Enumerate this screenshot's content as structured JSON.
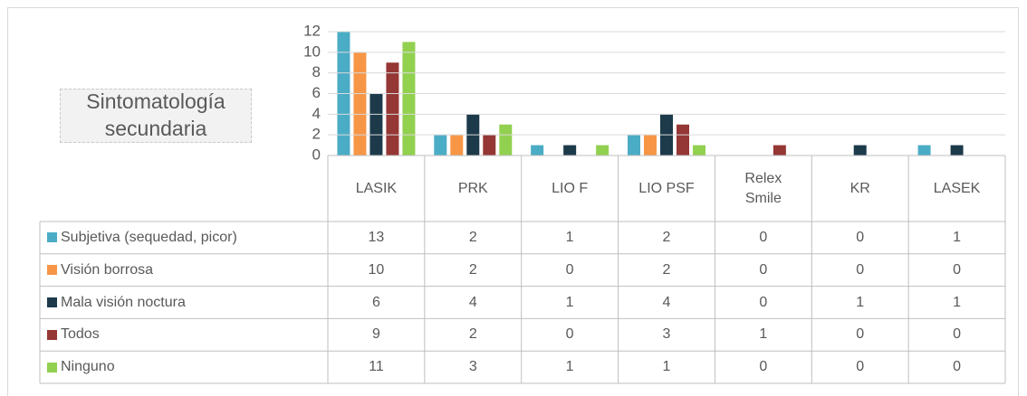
{
  "chart_data": {
    "type": "bar",
    "title": "Sintomatología secundaria",
    "categories": [
      "LASIK",
      "PRK",
      "LIO F",
      "LIO PSF",
      "Relex Smile",
      "KR",
      "LASEK"
    ],
    "series": [
      {
        "name": "Subjetiva (sequedad, picor)",
        "color": "#4bacc6",
        "values": [
          13,
          2,
          1,
          2,
          0,
          0,
          1
        ]
      },
      {
        "name": "Visión borrosa",
        "color": "#f79646",
        "values": [
          10,
          2,
          0,
          2,
          0,
          0,
          0
        ]
      },
      {
        "name": "Mala visión noctura",
        "color": "#1c3a4a",
        "values": [
          6,
          4,
          1,
          4,
          0,
          1,
          1
        ]
      },
      {
        "name": "Todos",
        "color": "#953735",
        "values": [
          9,
          2,
          0,
          3,
          1,
          0,
          0
        ]
      },
      {
        "name": "Ninguno",
        "color": "#92d050",
        "values": [
          11,
          3,
          1,
          1,
          0,
          0,
          0
        ]
      }
    ],
    "ylim": [
      0,
      12
    ],
    "yticks": [
      0,
      2,
      4,
      6,
      8,
      10,
      12
    ],
    "grid": true
  }
}
